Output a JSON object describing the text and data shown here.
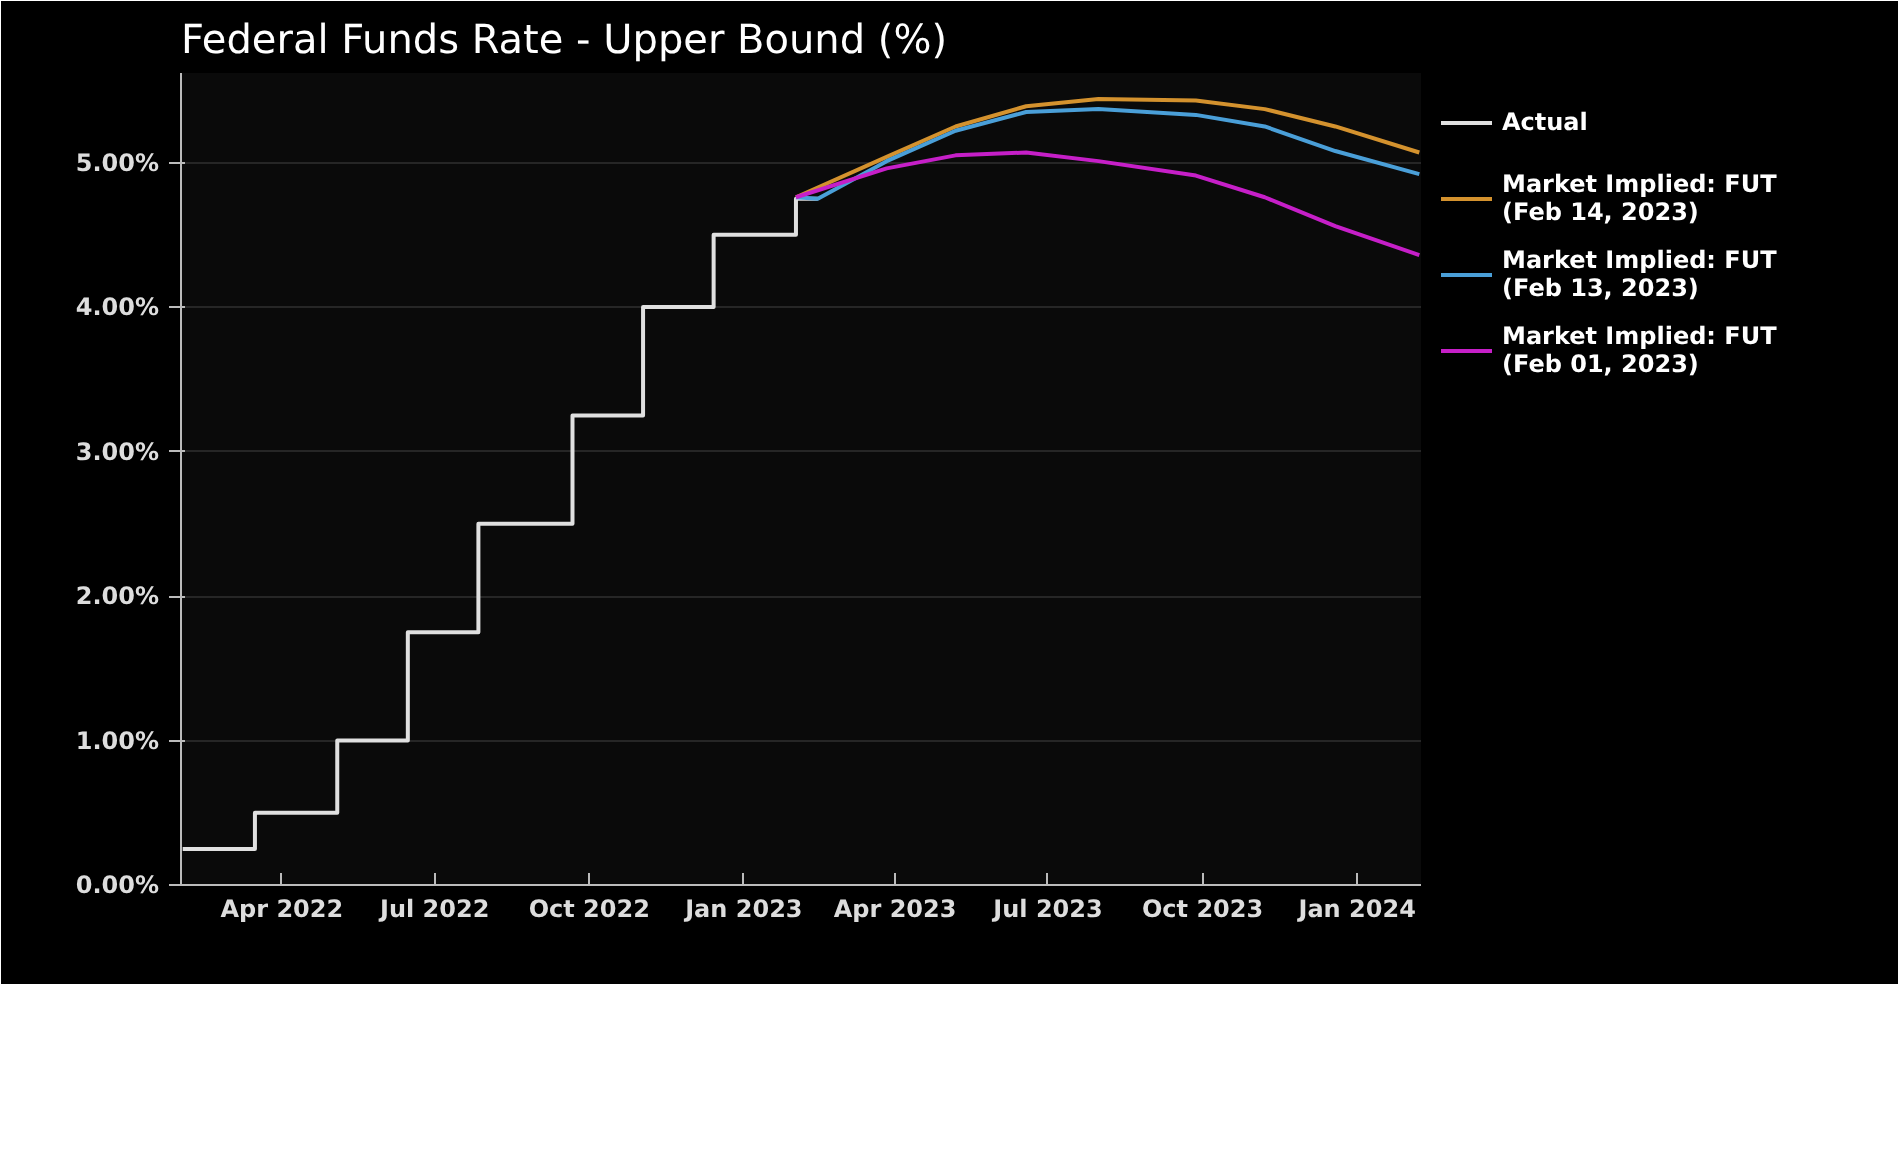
{
  "chart_data": {
    "type": "line",
    "title": "Federal Funds Rate - Upper Bound (%)",
    "xlim": [
      "2022-01-31",
      "2024-02-08"
    ],
    "xticks": [
      {
        "value": "2022-04-01",
        "label": "Apr 2022"
      },
      {
        "value": "2022-07-01",
        "label": "Jul 2022"
      },
      {
        "value": "2022-10-01",
        "label": "Oct 2022"
      },
      {
        "value": "2023-01-01",
        "label": "Jan 2023"
      },
      {
        "value": "2023-04-01",
        "label": "Apr 2023"
      },
      {
        "value": "2023-07-01",
        "label": "Jul 2023"
      },
      {
        "value": "2023-10-01",
        "label": "Oct 2023"
      },
      {
        "value": "2024-01-01",
        "label": "Jan 2024"
      }
    ],
    "ylim": [
      0,
      5.62
    ],
    "yticks": [
      {
        "value": 0,
        "label": "0.00%"
      },
      {
        "value": 1,
        "label": "1.00%"
      },
      {
        "value": 2,
        "label": "2.00%"
      },
      {
        "value": 3,
        "label": "3.00%"
      },
      {
        "value": 4,
        "label": "4.00%"
      },
      {
        "value": 5,
        "label": "5.00%"
      }
    ],
    "grid": "y",
    "legend": "right",
    "line_style": "solid",
    "series": [
      {
        "name": "Actual",
        "type": "step",
        "color": "#e0e0e0",
        "x": [
          "2022-02-01",
          "2022-03-16",
          "2022-05-04",
          "2022-06-15",
          "2022-07-27",
          "2022-09-21",
          "2022-11-02",
          "2022-12-14",
          "2023-02-01",
          "2023-02-14"
        ],
        "values": [
          0.25,
          0.5,
          1.0,
          1.75,
          2.5,
          3.25,
          4.0,
          4.5,
          4.75,
          4.75
        ]
      },
      {
        "name": "Market Implied: FUT\n(Feb 14, 2023)",
        "color": "#d4922e",
        "x": [
          "2023-02-01",
          "2023-03-27",
          "2023-05-07",
          "2023-06-18",
          "2023-07-31",
          "2023-09-27",
          "2023-11-07",
          "2023-12-19",
          "2024-02-07"
        ],
        "values": [
          4.76,
          5.04,
          5.25,
          5.39,
          5.44,
          5.43,
          5.37,
          5.25,
          5.07
        ]
      },
      {
        "name": "Market Implied: FUT\n(Feb 13, 2023)",
        "color": "#4a9fd8",
        "x": [
          "2023-02-01",
          "2023-02-14",
          "2023-03-27",
          "2023-05-07",
          "2023-06-18",
          "2023-07-31",
          "2023-09-27",
          "2023-11-07",
          "2023-12-19",
          "2024-02-07"
        ],
        "values": [
          4.76,
          4.75,
          5.01,
          5.22,
          5.35,
          5.37,
          5.33,
          5.25,
          5.08,
          4.92
        ]
      },
      {
        "name": "Market Implied: FUT\n(Feb 01, 2023)",
        "color": "#c61fc8",
        "x": [
          "2023-02-01",
          "2023-03-27",
          "2023-05-07",
          "2023-06-18",
          "2023-07-31",
          "2023-09-27",
          "2023-11-07",
          "2023-12-19",
          "2024-02-07"
        ],
        "values": [
          4.76,
          4.96,
          5.05,
          5.07,
          5.01,
          4.91,
          4.76,
          4.56,
          4.36
        ]
      }
    ]
  }
}
